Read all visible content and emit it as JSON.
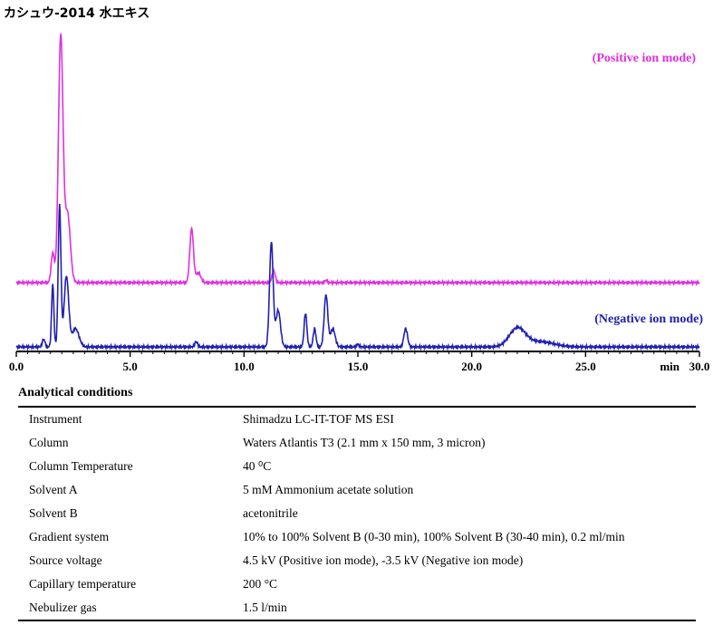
{
  "title": "カシュウ-2014 水エキス",
  "chart_data": {
    "type": "line",
    "x_unit_label": "min",
    "xlim": [
      0,
      30
    ],
    "x_ticks": [
      "0.0",
      "5.0",
      "10.0",
      "15.0",
      "20.0",
      "25.0",
      "30.0"
    ],
    "series": [
      {
        "name": "(Positive ion mode)",
        "color": "#e030e0",
        "baseline": 0.04,
        "peaks": [
          [
            1.6,
            0.12,
            0.07
          ],
          [
            1.95,
            1.0,
            0.1
          ],
          [
            2.25,
            0.28,
            0.12
          ],
          [
            7.7,
            0.22,
            0.08
          ],
          [
            8.0,
            0.04,
            0.1
          ],
          [
            11.3,
            0.05,
            0.07
          ],
          [
            13.6,
            0.01,
            0.05
          ]
        ]
      },
      {
        "name": "(Negative ion mode)",
        "color": "#2020b0",
        "baseline": 0.02,
        "peaks": [
          [
            1.2,
            0.03,
            0.06
          ],
          [
            1.6,
            0.24,
            0.05
          ],
          [
            1.9,
            0.54,
            0.06
          ],
          [
            2.2,
            0.27,
            0.1
          ],
          [
            2.6,
            0.07,
            0.15
          ],
          [
            7.9,
            0.02,
            0.06
          ],
          [
            11.2,
            0.4,
            0.08
          ],
          [
            11.5,
            0.14,
            0.1
          ],
          [
            12.7,
            0.13,
            0.06
          ],
          [
            13.1,
            0.07,
            0.06
          ],
          [
            13.6,
            0.2,
            0.08
          ],
          [
            13.9,
            0.07,
            0.1
          ],
          [
            15.0,
            0.01,
            0.05
          ],
          [
            17.1,
            0.07,
            0.08
          ],
          [
            22.0,
            0.07,
            0.35
          ],
          [
            23.0,
            0.02,
            0.6
          ]
        ]
      }
    ]
  },
  "conditions": {
    "heading": "Analytical conditions",
    "rows": [
      {
        "label": "Instrument",
        "value": "Shimadzu LC-IT-TOF MS ESI"
      },
      {
        "label": "Column",
        "value": "Waters Atlantis T3 (2.1 mm x 150 mm, 3 micron)"
      },
      {
        "label": "Column Temperature",
        "value": "40 ⁰C"
      },
      {
        "label": "Solvent A",
        "value": "5 mM Ammonium acetate solution"
      },
      {
        "label": "Solvent B",
        "value": "acetonitrile"
      },
      {
        "label": "Gradient system",
        "value": "10% to 100% Solvent B (0-30 min), 100% Solvent B (30-40 min), 0.2 ml/min"
      },
      {
        "label": "Source voltage",
        "value": "4.5 kV (Positive ion mode), -3.5 kV (Negative ion mode)"
      },
      {
        "label": "Capillary temperature",
        "value": "200 °C"
      },
      {
        "label": "Nebulizer gas",
        "value": "1.5 l/min"
      }
    ]
  }
}
